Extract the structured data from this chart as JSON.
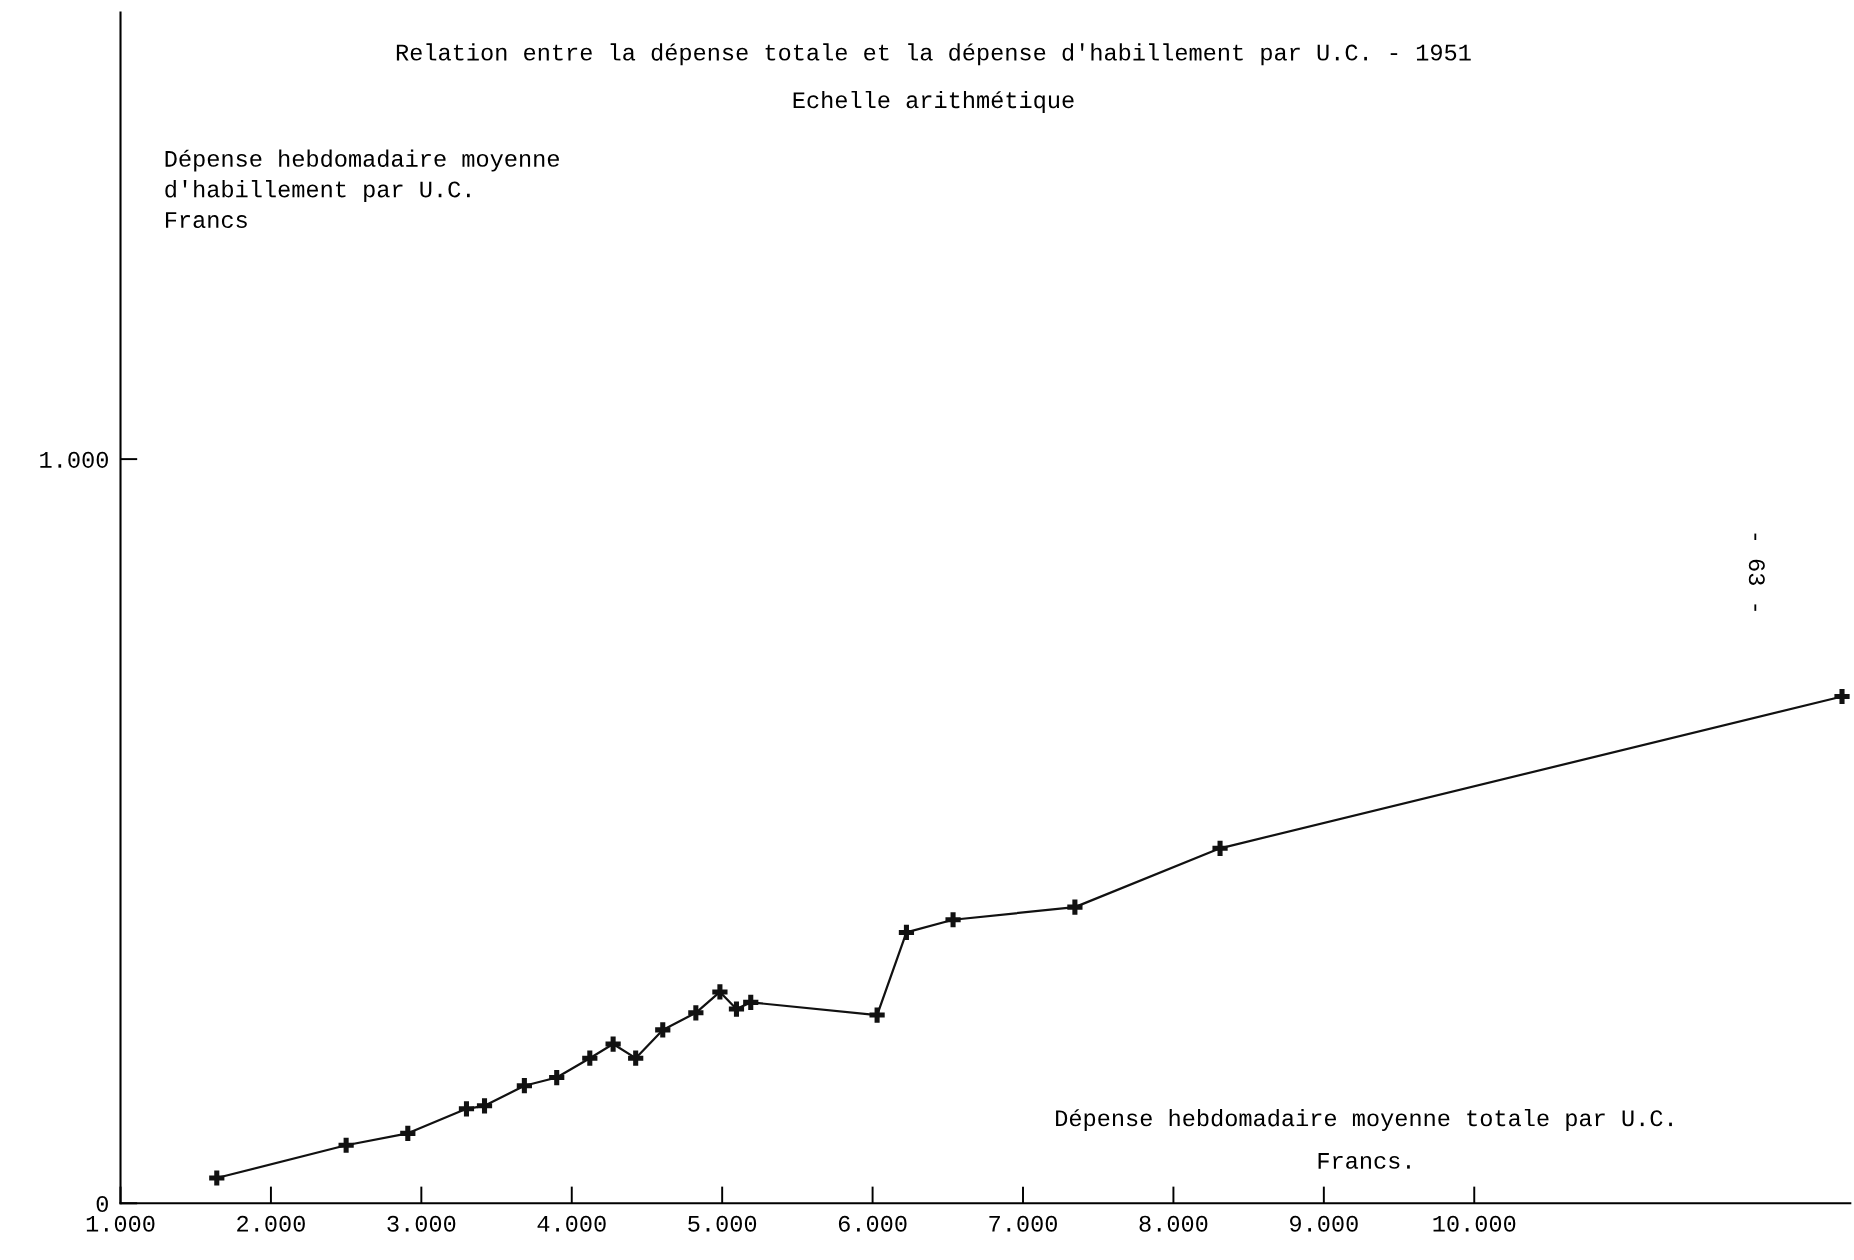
{
  "chart_data": {
    "type": "line",
    "title": "Relation entre la dépense totale et la dépense d'habillement par U.C. - 1951",
    "subtitle": "Echelle arithmétique",
    "ylabel": "Dépense hebdomadaire moyenne\nd'habillement par U.C.\nFrancs",
    "xlabel": "Dépense hebdomadaire moyenne totale par U.C.\nFrancs.",
    "annotations": [
      "- 63 -"
    ],
    "x": [
      1640,
      2500,
      2910,
      3300,
      3420,
      3685,
      3900,
      4120,
      4275,
      4425,
      4605,
      4825,
      4985,
      5095,
      5190,
      6030,
      6225,
      6535,
      7345,
      8310,
      12445
    ],
    "series": [
      {
        "color": "#111111",
        "values": [
          34,
          78,
          94,
          127,
          131,
          158,
          169,
          195,
          214,
          195,
          233,
          256,
          284,
          261,
          270,
          253,
          364,
          381,
          398,
          477,
          681
        ]
      }
    ],
    "marker": "cross",
    "line_style": "solid",
    "grid": false,
    "legend": false,
    "xlim": [
      1000,
      12500
    ],
    "ylim": [
      0,
      1600
    ],
    "xticks": [
      {
        "value": 1000,
        "label": "1.000"
      },
      {
        "value": 2000,
        "label": "2.000"
      },
      {
        "value": 3000,
        "label": "3.000"
      },
      {
        "value": 4000,
        "label": "4.000"
      },
      {
        "value": 5000,
        "label": "5.000"
      },
      {
        "value": 6000,
        "label": "6.000"
      },
      {
        "value": 7000,
        "label": "7.000"
      },
      {
        "value": 8000,
        "label": "8.000"
      },
      {
        "value": 9000,
        "label": "9.000"
      },
      {
        "value": 10000,
        "label": "10.000"
      }
    ],
    "yticks": [
      0,
      {
        "value": 1000,
        "label": "1.000"
      }
    ]
  }
}
